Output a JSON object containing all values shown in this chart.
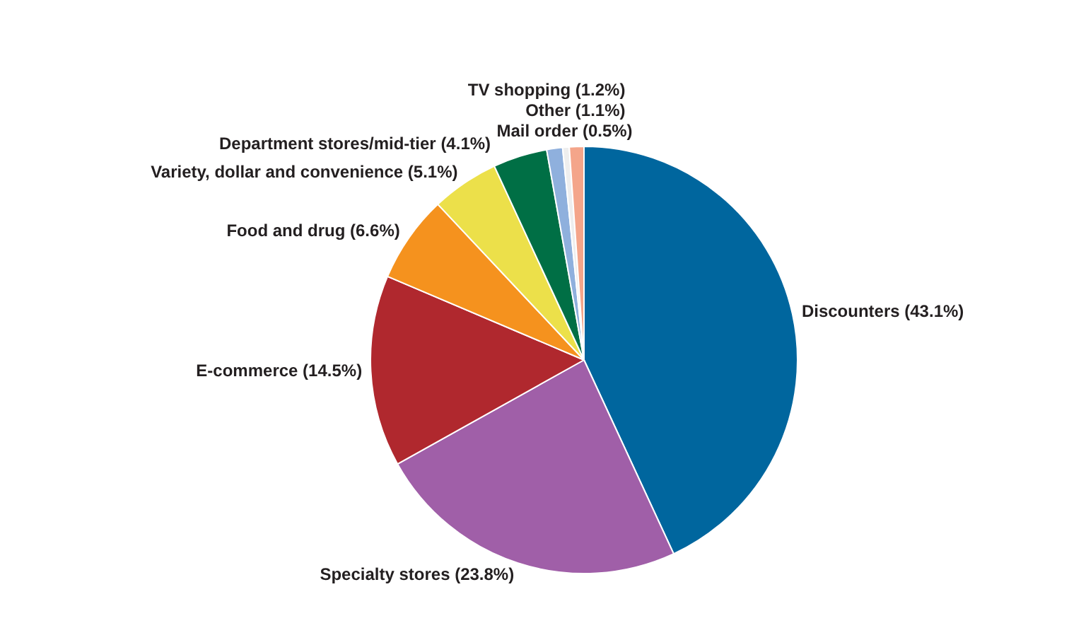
{
  "chart_data": {
    "type": "pie",
    "categories": [
      "Discounters",
      "Specialty stores",
      "E-commerce",
      "Food and drug",
      "Variety, dollar and convenience",
      "Department stores/mid-tier",
      "TV shopping",
      "Mail order",
      "Other"
    ],
    "values": [
      43.1,
      23.8,
      14.5,
      6.6,
      5.1,
      4.1,
      1.2,
      0.5,
      1.1
    ],
    "value_labels": [
      "(43.1%)",
      "(23.8%)",
      "(14.5%)",
      "(6.6%)",
      "(5.1%)",
      "(4.1%)",
      "(1.2%)",
      "(0.5%)",
      "(1.1%)"
    ],
    "colors": [
      "#00669e",
      "#a05fa8",
      "#b0282e",
      "#f5921e",
      "#ece04a",
      "#006f45",
      "#8fb0dd",
      "#eeeeee",
      "#f4a58a"
    ],
    "legend": false
  }
}
